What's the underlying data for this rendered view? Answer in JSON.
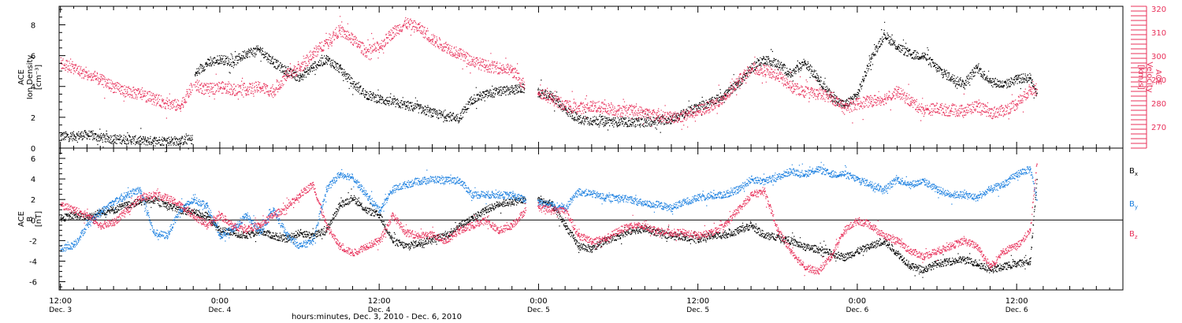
{
  "colors": {
    "density": "#000000",
    "velocity": "#e8305a",
    "bx": "#000000",
    "by": "#1a7fe0",
    "bz": "#e8305a",
    "axis": "#000000"
  },
  "x_ticks": [
    {
      "t": 12,
      "label": "12:00",
      "sublabel": "Dec. 3"
    },
    {
      "t": 24,
      "label": "0:00",
      "sublabel": "Dec. 4"
    },
    {
      "t": 36,
      "label": "12:00",
      "sublabel": "Dec. 4"
    },
    {
      "t": 48,
      "label": "0:00",
      "sublabel": "Dec. 5"
    },
    {
      "t": 60,
      "label": "12:00",
      "sublabel": "Dec. 5"
    },
    {
      "t": 72,
      "label": "0:00",
      "sublabel": "Dec. 6"
    },
    {
      "t": 84,
      "label": "12:00",
      "sublabel": "Dec. 6"
    }
  ],
  "xlabel": "hours:minutes, Dec.  3, 2010 - Dec.  6, 2010",
  "chart_data": [
    {
      "type": "scatter",
      "panel": "top",
      "xlim": [
        11.9,
        92
      ],
      "ylabel_left": [
        "ACE",
        "Ion Density",
        "[cm⁻³]"
      ],
      "ylim_left": [
        0,
        9.2
      ],
      "yticks_left": [
        0,
        2,
        4,
        6,
        8
      ],
      "ylabel_right": [
        "ACE",
        "Velocity",
        "[km/s]"
      ],
      "ylim_right": [
        261,
        321
      ],
      "yticks_right": [
        270,
        280,
        290,
        300,
        310,
        320
      ],
      "series": [
        {
          "key": "density",
          "axis": "left",
          "x": [
            12,
            13,
            14,
            15,
            16,
            17,
            18,
            19,
            20,
            21,
            21.9,
            22.1,
            23,
            24,
            25,
            26,
            27,
            28,
            29,
            30,
            31,
            32,
            33,
            34,
            35,
            36,
            37,
            38,
            39,
            40,
            41,
            42,
            43,
            44,
            45,
            46,
            46.9,
            48,
            49,
            50,
            51,
            52,
            53,
            54,
            55,
            56,
            57,
            58,
            59,
            60,
            61,
            62,
            63,
            64,
            65,
            66,
            67,
            68,
            69,
            70,
            71,
            72,
            73,
            74,
            75,
            76,
            77,
            78,
            79,
            80,
            81,
            82,
            83,
            84,
            85,
            85.5
          ],
          "y": [
            0.8,
            0.8,
            0.9,
            0.7,
            0.6,
            0.6,
            0.5,
            0.5,
            0.5,
            0.5,
            0.6,
            4.8,
            5.5,
            5.8,
            5.6,
            6.2,
            6.4,
            5.6,
            5.0,
            4.6,
            5.3,
            5.8,
            5.2,
            4.2,
            3.5,
            3.2,
            3.0,
            2.8,
            2.6,
            2.3,
            2.1,
            2.0,
            3.2,
            3.5,
            3.7,
            3.8,
            3.9,
            3.6,
            3.4,
            2.5,
            1.9,
            1.8,
            1.8,
            1.7,
            1.7,
            1.7,
            1.8,
            1.9,
            2.3,
            2.7,
            3.0,
            3.5,
            4.2,
            5.2,
            5.8,
            5.5,
            4.8,
            5.6,
            4.6,
            3.4,
            2.8,
            3.5,
            5.8,
            7.4,
            6.6,
            6.1,
            6.0,
            5.2,
            4.6,
            4.2,
            5.2,
            4.4,
            4.1,
            4.5,
            4.6,
            3.6
          ]
        },
        {
          "key": "velocity",
          "axis": "right",
          "x": [
            12,
            13,
            14,
            15,
            16,
            17,
            18,
            19,
            20,
            21,
            22,
            23,
            24,
            25,
            26,
            27,
            28,
            29,
            30,
            31,
            32,
            33,
            34,
            35,
            36,
            37,
            38,
            39,
            40,
            41,
            42,
            43,
            44,
            45,
            46,
            46.9,
            48,
            49,
            50,
            51,
            52,
            53,
            54,
            55,
            56,
            57,
            58,
            59,
            60,
            61,
            62,
            63,
            64,
            65,
            66,
            67,
            68,
            69,
            70,
            71,
            72,
            73,
            74,
            75,
            76,
            77,
            78,
            79,
            80,
            81,
            82,
            83,
            84,
            85,
            85.5
          ],
          "y": [
            297,
            295,
            292,
            290,
            287,
            285,
            284,
            282,
            280,
            279,
            288,
            286,
            287,
            286,
            286,
            287,
            285,
            292,
            295,
            301,
            306,
            311,
            307,
            302,
            304,
            310,
            314,
            312,
            307,
            304,
            301,
            298,
            296,
            295,
            294,
            288,
            285,
            282,
            279,
            278,
            279,
            278,
            277,
            277,
            276,
            275,
            274,
            275,
            277,
            279,
            282,
            290,
            295,
            294,
            292,
            287,
            285,
            284,
            283,
            278,
            280,
            281,
            282,
            285,
            281,
            277,
            278,
            277,
            277,
            279,
            276,
            277,
            280,
            286,
            286
          ]
        }
      ]
    },
    {
      "type": "scatter",
      "panel": "bottom",
      "xlim": [
        11.9,
        92
      ],
      "ylabel_left": [
        "ACE",
        "B",
        "[nT]"
      ],
      "ylim": [
        -6.8,
        7
      ],
      "yticks": [
        -6,
        -4,
        -2,
        0,
        2,
        4,
        6
      ],
      "zero_line": true,
      "legend": [
        {
          "key": "bx",
          "base": "B",
          "sub": "x"
        },
        {
          "key": "by",
          "base": "B",
          "sub": "y"
        },
        {
          "key": "bz",
          "base": "B",
          "sub": "z"
        }
      ],
      "series": [
        {
          "key": "bx",
          "x": [
            12,
            13,
            14,
            15,
            16,
            17,
            18,
            19,
            20,
            21,
            22,
            23,
            24,
            25,
            26,
            27,
            28,
            29,
            30,
            31,
            32,
            33,
            34,
            35,
            36,
            37,
            38,
            39,
            40,
            41,
            42,
            43,
            44,
            45,
            46,
            47,
            48,
            49,
            50,
            51,
            52,
            53,
            54,
            55,
            56,
            57,
            58,
            59,
            60,
            61,
            62,
            63,
            64,
            65,
            66,
            67,
            68,
            69,
            70,
            71,
            72,
            73,
            74,
            75,
            76,
            77,
            78,
            79,
            80,
            81,
            82,
            83,
            84,
            85,
            85.5
          ],
          "y": [
            0.2,
            0.5,
            0.3,
            0.8,
            1.0,
            1.5,
            1.8,
            2.0,
            1.5,
            1.0,
            0.8,
            0.4,
            -1.0,
            -1.2,
            -1.5,
            -1.0,
            -1.5,
            -1.8,
            -1.2,
            -1.5,
            -1.0,
            1.5,
            2.2,
            1.0,
            0.5,
            -2.0,
            -2.5,
            -2.2,
            -1.8,
            -1.5,
            -0.5,
            0.2,
            1.0,
            1.6,
            1.8,
            2.0,
            2.0,
            1.5,
            -0.5,
            -2.5,
            -2.8,
            -2.0,
            -1.5,
            -1.0,
            -0.8,
            -1.2,
            -1.5,
            -1.6,
            -1.8,
            -1.5,
            -1.4,
            -1.0,
            -0.5,
            -1.5,
            -1.6,
            -2.0,
            -2.6,
            -2.8,
            -3.2,
            -3.6,
            -3.0,
            -2.5,
            -2.0,
            -3.2,
            -4.5,
            -4.8,
            -4.2,
            -4.0,
            -3.8,
            -4.2,
            -4.8,
            -4.5,
            -4.2,
            -4.0,
            4.0
          ]
        },
        {
          "key": "by",
          "x": [
            12,
            13,
            14,
            15,
            16,
            17,
            18,
            19,
            20,
            21,
            22,
            23,
            24,
            25,
            26,
            27,
            28,
            29,
            30,
            31,
            32,
            33,
            34,
            35,
            36,
            37,
            38,
            39,
            40,
            41,
            42,
            43,
            44,
            45,
            46,
            47,
            48,
            49,
            50,
            51,
            52,
            53,
            54,
            55,
            56,
            57,
            58,
            59,
            60,
            61,
            62,
            63,
            64,
            65,
            66,
            67,
            68,
            69,
            70,
            71,
            72,
            73,
            74,
            75,
            76,
            77,
            78,
            79,
            80,
            81,
            82,
            83,
            84,
            85,
            85.5
          ],
          "y": [
            -2.8,
            -2.4,
            -0.5,
            0.8,
            1.8,
            2.5,
            3.0,
            -1.2,
            -1.5,
            1.0,
            2.0,
            1.5,
            -1.5,
            -0.8,
            0.5,
            -1.2,
            1.0,
            -1.4,
            -2.5,
            -2.0,
            3.0,
            4.5,
            4.2,
            2.5,
            1.0,
            3.0,
            3.5,
            3.8,
            4.0,
            3.9,
            3.9,
            2.5,
            2.5,
            2.5,
            2.4,
            2.0,
            1.8,
            1.5,
            1.2,
            2.8,
            2.6,
            2.2,
            2.2,
            2.0,
            1.6,
            1.5,
            1.2,
            1.8,
            2.2,
            2.4,
            2.5,
            3.0,
            4.0,
            3.8,
            4.2,
            4.8,
            4.5,
            5.0,
            4.5,
            4.5,
            4.0,
            3.5,
            3.0,
            4.0,
            3.5,
            3.8,
            3.0,
            2.5,
            2.5,
            2.2,
            3.0,
            3.5,
            4.5,
            5.0,
            2.0
          ]
        },
        {
          "key": "bz",
          "x": [
            12,
            13,
            14,
            15,
            16,
            17,
            18,
            19,
            20,
            21,
            22,
            23,
            24,
            25,
            26,
            27,
            28,
            29,
            30,
            31,
            32,
            33,
            34,
            35,
            36,
            37,
            38,
            39,
            40,
            41,
            42,
            43,
            44,
            45,
            46,
            47,
            48,
            49,
            50,
            51,
            52,
            53,
            54,
            55,
            56,
            57,
            58,
            59,
            60,
            61,
            62,
            63,
            64,
            65,
            66,
            67,
            68,
            69,
            70,
            71,
            72,
            73,
            74,
            75,
            76,
            77,
            78,
            79,
            80,
            81,
            82,
            83,
            84,
            85,
            85.5
          ],
          "y": [
            1.5,
            1.0,
            0.5,
            -0.5,
            -0.2,
            1.0,
            2.2,
            2.5,
            2.2,
            1.5,
            0.5,
            -0.5,
            0.5,
            -0.6,
            -0.8,
            -0.5,
            0.5,
            1.2,
            2.5,
            3.5,
            -0.5,
            -2.5,
            -3.2,
            -2.5,
            -2.0,
            0.5,
            -1.2,
            -1.5,
            -1.4,
            -2.0,
            -1.0,
            -0.5,
            0.0,
            -1.0,
            -0.5,
            1.0,
            1.2,
            1.0,
            1.0,
            -1.5,
            -2.0,
            -1.8,
            -1.0,
            -0.5,
            -0.6,
            -1.0,
            -1.2,
            -1.2,
            -1.5,
            -1.2,
            -0.5,
            1.0,
            2.5,
            2.8,
            -1.0,
            -3.0,
            -4.5,
            -5.0,
            -3.5,
            -1.0,
            0.0,
            -0.5,
            -1.5,
            -2.0,
            -3.0,
            -3.5,
            -3.0,
            -2.5,
            -2.0,
            -2.5,
            -4.5,
            -3.0,
            -2.5,
            -1.0,
            5.5
          ]
        }
      ]
    }
  ]
}
